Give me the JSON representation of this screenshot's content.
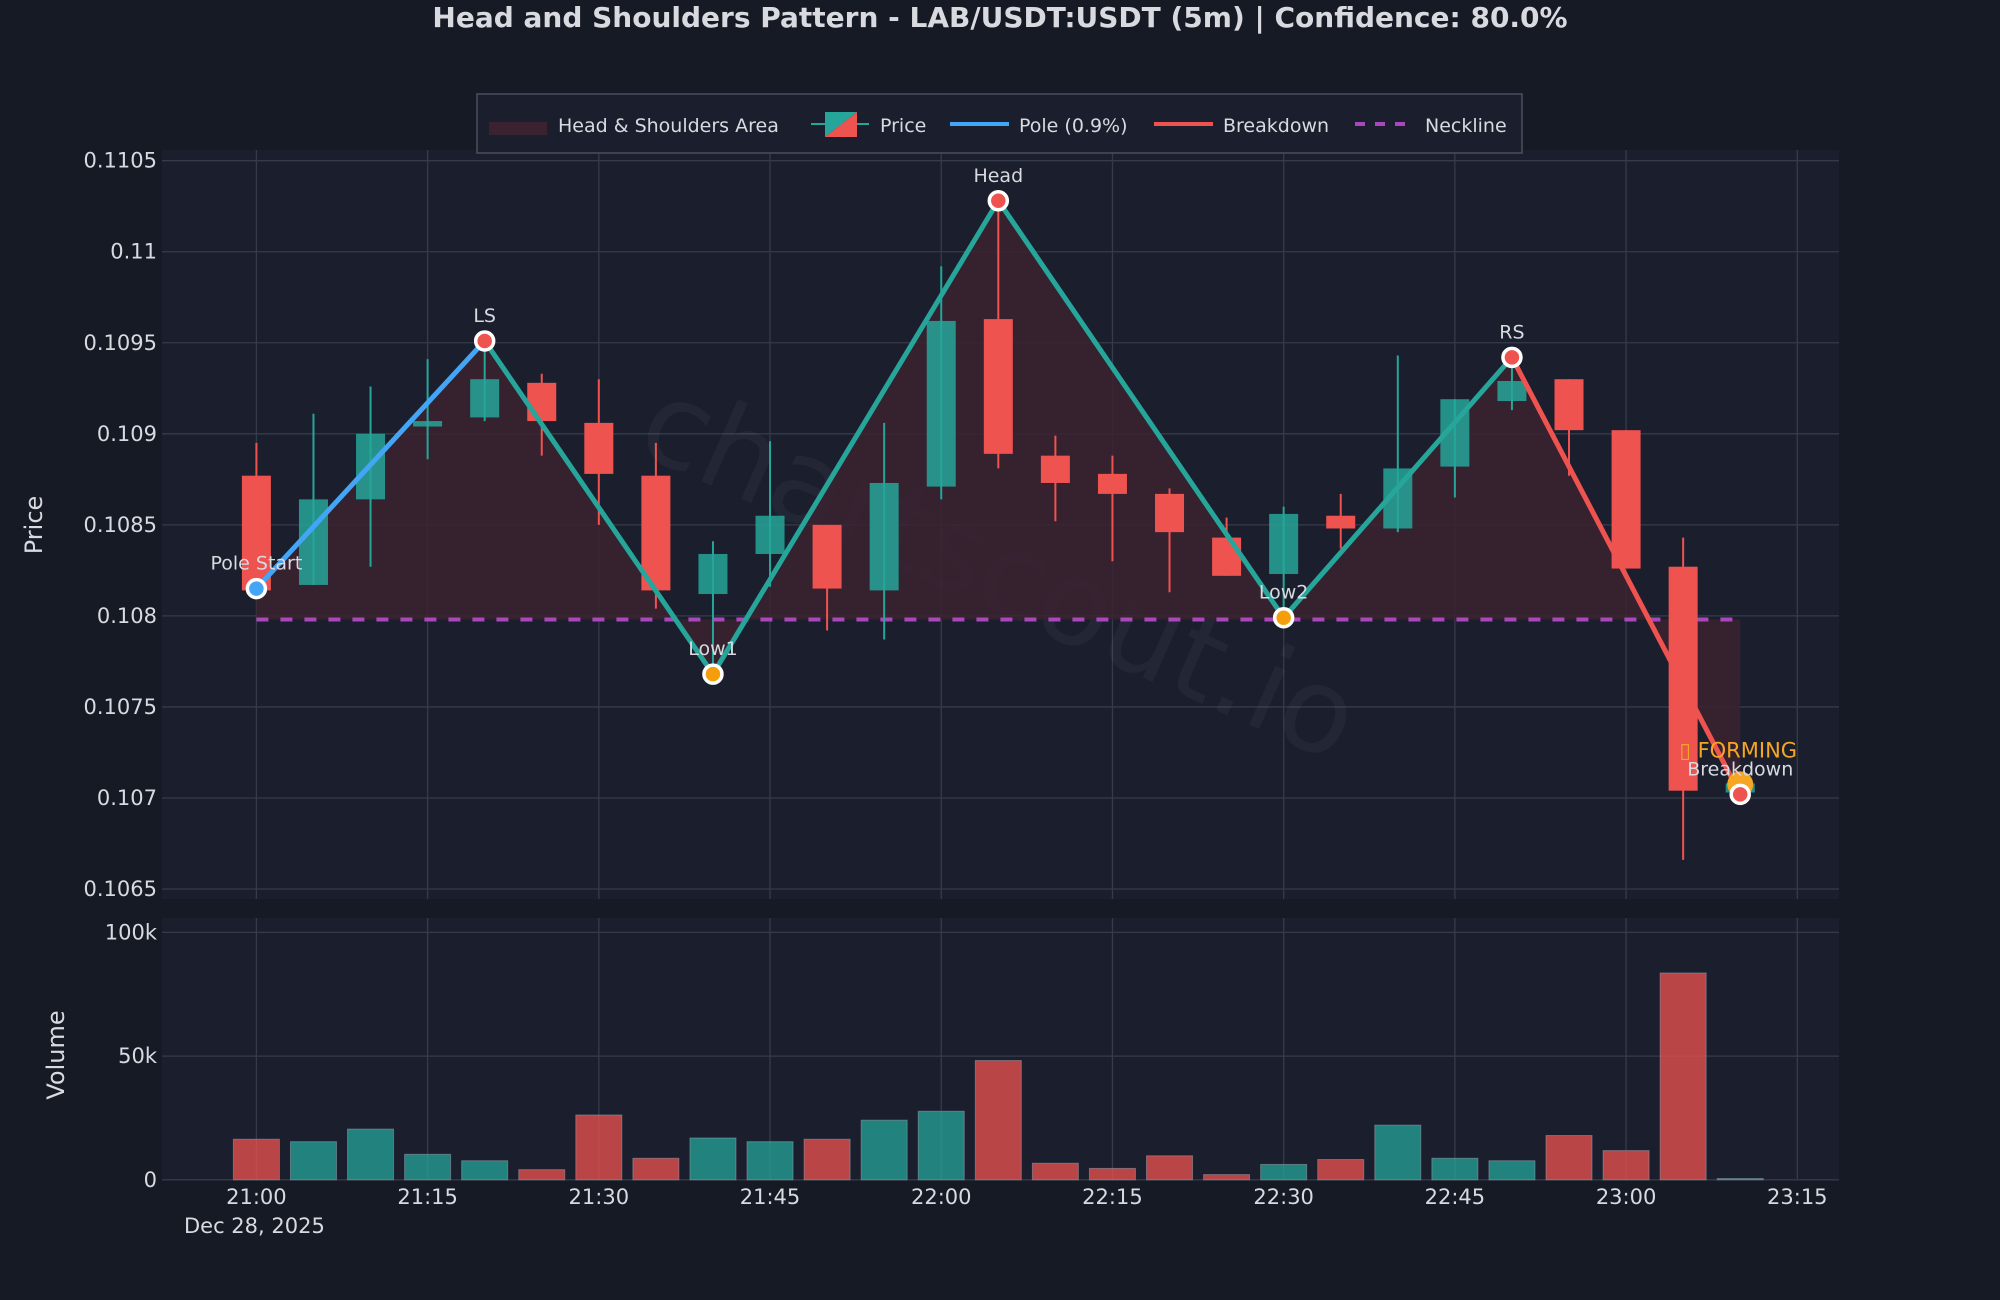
{
  "title": "Head and Shoulders Pattern - LAB/USDT:USDT (5m) | Confidence: 80.0%",
  "watermark": "chartscout.io",
  "colors": {
    "background": "#161a25",
    "plot_background": "#1b1f2d",
    "up": "#26a69a",
    "down": "#ef5350",
    "pole": "#42a5f5",
    "neckline": "#ab47bc",
    "pattern_line": "#26a69a",
    "breakdown_line": "#ef5350",
    "area": "#3b2230",
    "forming": "#f5a623",
    "text": "#d8dae0",
    "grid": "#363b4a"
  },
  "legend": {
    "placement": "top-center",
    "items": [
      {
        "label": "Head & Shoulders Area",
        "kind": "area"
      },
      {
        "label": "Price",
        "kind": "candle"
      },
      {
        "label": "Pole (0.9%)",
        "kind": "line-pole"
      },
      {
        "label": "Breakdown",
        "kind": "line-breakdown"
      },
      {
        "label": "Neckline",
        "kind": "dashed"
      }
    ]
  },
  "chart_data": [
    {
      "type": "candlestick",
      "ylabel": "Price",
      "ylim": [
        0.1064,
        0.11055
      ],
      "yticks": [
        "0.1065",
        "0.107",
        "0.1075",
        "0.108",
        "0.1085",
        "0.109",
        "0.1095",
        "0.11",
        "0.1105"
      ],
      "ytick_values": [
        0.1065,
        0.107,
        0.1075,
        0.108,
        0.1085,
        0.109,
        0.1095,
        0.11,
        0.1105
      ],
      "xticks": [
        "21:00",
        "21:15",
        "21:30",
        "21:45",
        "22:00",
        "22:15",
        "22:30",
        "22:45",
        "23:00",
        "23:15"
      ],
      "xdate_label": "Dec 28, 2025",
      "grid": true,
      "candles": [
        {
          "t": "21:00",
          "o": 0.10877,
          "h": 0.10895,
          "l": 0.10813,
          "c": 0.10814
        },
        {
          "t": "21:05",
          "o": 0.10817,
          "h": 0.10911,
          "l": 0.10817,
          "c": 0.10864
        },
        {
          "t": "21:10",
          "o": 0.10864,
          "h": 0.10926,
          "l": 0.10827,
          "c": 0.109
        },
        {
          "t": "21:15",
          "o": 0.10904,
          "h": 0.10941,
          "l": 0.10886,
          "c": 0.10907
        },
        {
          "t": "21:20",
          "o": 0.10909,
          "h": 0.10951,
          "l": 0.10907,
          "c": 0.1093
        },
        {
          "t": "21:25",
          "o": 0.10928,
          "h": 0.10933,
          "l": 0.10888,
          "c": 0.10907
        },
        {
          "t": "21:30",
          "o": 0.10906,
          "h": 0.1093,
          "l": 0.1085,
          "c": 0.10878
        },
        {
          "t": "21:35",
          "o": 0.10877,
          "h": 0.10895,
          "l": 0.10804,
          "c": 0.10814
        },
        {
          "t": "21:40",
          "o": 0.10812,
          "h": 0.10841,
          "l": 0.10768,
          "c": 0.10834
        },
        {
          "t": "21:45",
          "o": 0.10834,
          "h": 0.10896,
          "l": 0.10816,
          "c": 0.10855
        },
        {
          "t": "21:50",
          "o": 0.1085,
          "h": 0.1085,
          "l": 0.10792,
          "c": 0.10815
        },
        {
          "t": "21:55",
          "o": 0.10814,
          "h": 0.10906,
          "l": 0.10787,
          "c": 0.10873
        },
        {
          "t": "22:00",
          "o": 0.10871,
          "h": 0.10992,
          "l": 0.10864,
          "c": 0.10962
        },
        {
          "t": "22:05",
          "o": 0.10963,
          "h": 0.11028,
          "l": 0.10881,
          "c": 0.10889
        },
        {
          "t": "22:10",
          "o": 0.10888,
          "h": 0.10899,
          "l": 0.10852,
          "c": 0.10873
        },
        {
          "t": "22:15",
          "o": 0.10878,
          "h": 0.10888,
          "l": 0.1083,
          "c": 0.10867
        },
        {
          "t": "22:20",
          "o": 0.10867,
          "h": 0.1087,
          "l": 0.10813,
          "c": 0.10846
        },
        {
          "t": "22:25",
          "o": 0.10843,
          "h": 0.10854,
          "l": 0.10822,
          "c": 0.10822
        },
        {
          "t": "22:30",
          "o": 0.10823,
          "h": 0.1086,
          "l": 0.10799,
          "c": 0.10856
        },
        {
          "t": "22:35",
          "o": 0.10855,
          "h": 0.10867,
          "l": 0.10837,
          "c": 0.10848
        },
        {
          "t": "22:40",
          "o": 0.10848,
          "h": 0.10943,
          "l": 0.10846,
          "c": 0.10881
        },
        {
          "t": "22:45",
          "o": 0.10882,
          "h": 0.10919,
          "l": 0.10865,
          "c": 0.10919
        },
        {
          "t": "22:50",
          "o": 0.10918,
          "h": 0.10941,
          "l": 0.10913,
          "c": 0.10929
        },
        {
          "t": "22:55",
          "o": 0.1093,
          "h": 0.1093,
          "l": 0.10877,
          "c": 0.10902
        },
        {
          "t": "23:00",
          "o": 0.10902,
          "h": 0.10902,
          "l": 0.10826,
          "c": 0.10826
        },
        {
          "t": "23:05",
          "o": 0.10827,
          "h": 0.10843,
          "l": 0.10666,
          "c": 0.10704
        },
        {
          "t": "23:10",
          "o": 0.10703,
          "h": 0.10712,
          "l": 0.107,
          "c": 0.10708
        }
      ],
      "pattern_points": [
        {
          "label": "Pole Start",
          "t": "21:00",
          "price": 0.10815,
          "color": "#42a5f5"
        },
        {
          "label": "LS",
          "t": "21:20",
          "price": 0.10951,
          "color": "#ef5350"
        },
        {
          "label": "Low1",
          "t": "21:40",
          "price": 0.10768,
          "color": "#f59e0b"
        },
        {
          "label": "Head",
          "t": "22:05",
          "price": 0.11028,
          "color": "#ef5350"
        },
        {
          "label": "Low2",
          "t": "22:30",
          "price": 0.10799,
          "color": "#f59e0b"
        },
        {
          "label": "RS",
          "t": "22:50",
          "price": 0.10942,
          "color": "#ef5350"
        },
        {
          "label": "Breakdown",
          "t": "23:10",
          "price": 0.10702,
          "color": "#ef5350"
        }
      ],
      "neckline": {
        "price": 0.10798,
        "from": "21:00",
        "to": "23:10"
      },
      "forming_label": "▯ FORMING"
    },
    {
      "type": "bar",
      "ylabel": "Volume",
      "ylim": [
        0,
        100000
      ],
      "yticks": [
        "0",
        "50k",
        "100k"
      ],
      "ytick_values": [
        0,
        50000,
        100000
      ],
      "values": [
        16400,
        15400,
        20500,
        10300,
        7700,
        4100,
        26200,
        8700,
        16900,
        15400,
        16400,
        24100,
        27700,
        48200,
        6700,
        4600,
        9700,
        2100,
        6200,
        8200,
        22100,
        8700,
        7700,
        17900,
        11800,
        83600,
        500
      ]
    }
  ]
}
